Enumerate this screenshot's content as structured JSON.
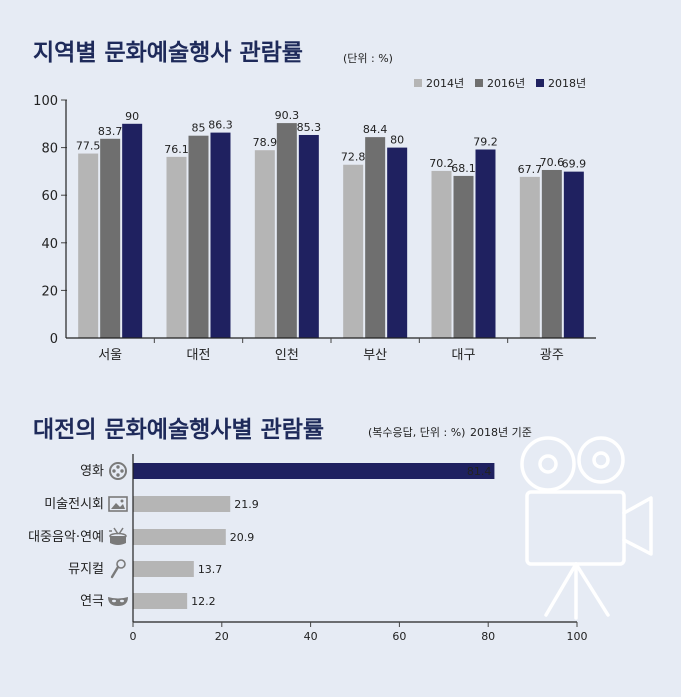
{
  "colors": {
    "background": "#e6ebf4",
    "series_2014": "#b5b5b5",
    "series_2016": "#6f6f6f",
    "series_2018": "#1f2160",
    "hbar_top": "#1f2160",
    "hbar_other": "#b5b5b5",
    "decor_line": "#ffffff"
  },
  "chart_data": [
    {
      "type": "bar",
      "title": "지역별 문화예술행사 관람률",
      "unit_note": "(단위 : %)",
      "categories": [
        "서울",
        "대전",
        "인천",
        "부산",
        "대구",
        "광주"
      ],
      "series": [
        {
          "name": "2014년",
          "values": [
            77.5,
            76.1,
            78.9,
            72.8,
            70.2,
            67.7
          ]
        },
        {
          "name": "2016년",
          "values": [
            83.7,
            85,
            90.3,
            84.4,
            68.1,
            70.6
          ]
        },
        {
          "name": "2018년",
          "values": [
            90,
            86.3,
            85.3,
            80,
            79.2,
            69.9
          ]
        }
      ],
      "value_labels": [
        [
          "77.5",
          "76.1",
          "78.9",
          "72.8",
          "70.2",
          "67.7"
        ],
        [
          "83.7",
          "85",
          "90.3",
          "84.4",
          "68.1",
          "70.6"
        ],
        [
          "90",
          "86.3",
          "85.3",
          "80",
          "79.2",
          "69.9"
        ]
      ],
      "ylim": [
        0,
        100
      ],
      "yticks": [
        0,
        20,
        40,
        60,
        80,
        100
      ],
      "xlabel": "",
      "ylabel": "",
      "legend": "top-right",
      "grid": false
    },
    {
      "type": "bar",
      "orientation": "horizontal",
      "title": "대전의 문화예술행사별 관람률",
      "unit_note": "(복수응답, 단위 : %)",
      "basis_note": "2018년 기준",
      "categories": [
        "영화",
        "미술전시회",
        "대중음악·연예",
        "뮤지컬",
        "연극"
      ],
      "category_icons": [
        "film-reel-icon",
        "painting-icon",
        "drum-icon",
        "microphone-icon",
        "theater-mask-icon"
      ],
      "values": [
        81.4,
        21.9,
        20.9,
        13.7,
        12.2
      ],
      "value_labels": [
        "81.4",
        "21.9",
        "20.9",
        "13.7",
        "12.2"
      ],
      "xlim": [
        0,
        100
      ],
      "xticks": [
        0,
        20,
        40,
        60,
        80,
        100
      ],
      "xlabel": "",
      "ylabel": "",
      "grid": false,
      "decoration": "movie-camera-icon"
    }
  ]
}
